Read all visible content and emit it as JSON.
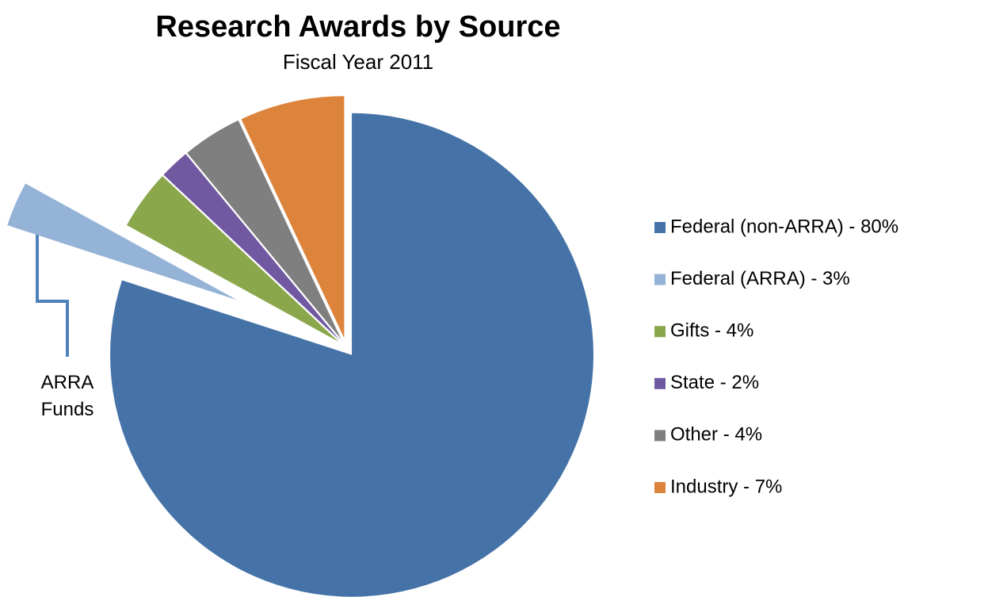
{
  "chart_data": {
    "type": "pie",
    "title": "Research Awards by Source",
    "subtitle": "Fiscal Year 2011",
    "categories": [
      "Federal  (non-ARRA) - 80%",
      "Federal (ARRA) - 3%",
      "Gifts - 4%",
      "State - 2%",
      "Other - 4%",
      "Industry - 7%"
    ],
    "values": [
      80,
      3,
      4,
      2,
      4,
      7
    ],
    "colors": [
      "#4673a7",
      "#95b3d7",
      "#8ba74c",
      "#7059a0",
      "#7f7f7f",
      "#dd843c"
    ],
    "annotation": "ARRA Funds",
    "legend": "right"
  }
}
